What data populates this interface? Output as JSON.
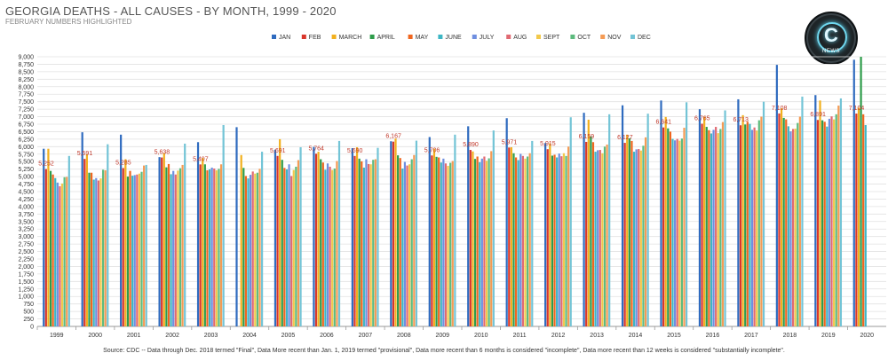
{
  "header": {
    "title": "GEORGIA DEATHS - ALL CAUSES - BY MONTH, 1999 - 2020",
    "subtitle": "FEBRUARY NUMBERS HIGHLIGHTED"
  },
  "logo": {
    "glyph": "C",
    "text": "NEWS"
  },
  "footer": {
    "source": "Source: CDC -- Data through Dec. 2018 termed \"Final\", Data More recent than Jan. 1, 2019 termed \"provisional\", Data more recent than 6 months is considered \"incomplete\", Data more recent than 12 weeks is considered \"substantially incomplete\"."
  },
  "chart_data": {
    "type": "bar",
    "title": "GEORGIA DEATHS - ALL CAUSES - BY MONTH, 1999 - 2020",
    "subtitle": "FEBRUARY NUMBERS HIGHLIGHTED",
    "categories": [
      "1999",
      "2000",
      "2001",
      "2002",
      "2003",
      "2004",
      "2005",
      "2006",
      "2007",
      "2008",
      "2009",
      "2010",
      "2011",
      "2012",
      "2013",
      "2014",
      "2015",
      "2016",
      "2017",
      "2018",
      "2019",
      "2020"
    ],
    "ylim": [
      0,
      9000
    ],
    "yticks": [
      0,
      250,
      500,
      750,
      1000,
      1250,
      1500,
      1750,
      2000,
      2250,
      2500,
      2750,
      3000,
      3250,
      3500,
      3750,
      4000,
      4250,
      4500,
      4750,
      5000,
      5250,
      5500,
      5750,
      6000,
      6250,
      6500,
      6750,
      7000,
      7250,
      7500,
      7750,
      8000,
      8250,
      8500,
      8750,
      9000
    ],
    "grid": true,
    "legend_position": "top",
    "series": [
      {
        "name": "JAN",
        "color": "#2f6bbf",
        "values": [
          5930,
          6480,
          6400,
          5650,
          6150,
          6650,
          5900,
          5990,
          5950,
          6180,
          6320,
          6680,
          6950,
          6120,
          7130,
          7380,
          7540,
          7250,
          7580,
          8730,
          7720,
          8900
        ]
      },
      {
        "name": "FEB",
        "color": "#d9362b",
        "values": [
          5252,
          5591,
          5285,
          5638,
          5407,
          null,
          5691,
          5764,
          5690,
          6167,
          5706,
          5890,
          5971,
          5915,
          6159,
          6127,
          6641,
          6765,
          6713,
          7108,
          6891,
          7104
        ]
      },
      {
        "name": "MARCH",
        "color": "#f2b01e",
        "values": [
          5930,
          5750,
          5580,
          5790,
          5620,
          5720,
          6250,
          5830,
          5980,
          6270,
          5930,
          5840,
          5980,
          6110,
          6900,
          6400,
          6990,
          7000,
          7050,
          7280,
          7540,
          7300
        ]
      },
      {
        "name": "APRIL",
        "color": "#2e9c4a",
        "values": [
          5190,
          5130,
          5000,
          5310,
          5410,
          5290,
          5560,
          5580,
          5600,
          5710,
          5660,
          5590,
          5780,
          5700,
          6340,
          6280,
          6610,
          6660,
          6740,
          6960,
          6880,
          9000
        ]
      },
      {
        "name": "MAY",
        "color": "#f0661f",
        "values": [
          5070,
          5130,
          5190,
          5420,
          5210,
          5020,
          5290,
          5470,
          5510,
          5620,
          5640,
          5670,
          5640,
          5730,
          6150,
          6190,
          6500,
          6550,
          6830,
          6910,
          6830,
          7080
        ]
      },
      {
        "name": "JUNE",
        "color": "#3db6c4",
        "values": [
          4950,
          4900,
          5030,
          5080,
          5240,
          4940,
          5240,
          5230,
          5300,
          5270,
          5470,
          5480,
          5550,
          5640,
          5830,
          5830,
          6260,
          6440,
          6760,
          6680,
          6670,
          6720
        ]
      },
      {
        "name": "JULY",
        "color": "#6f8fe0",
        "values": [
          4800,
          4950,
          5050,
          5190,
          5300,
          5060,
          5410,
          5440,
          5580,
          5490,
          5600,
          5600,
          5760,
          5770,
          5880,
          5910,
          6210,
          6560,
          6560,
          6510,
          6930,
          null
        ]
      },
      {
        "name": "AUG",
        "color": "#e06a73",
        "values": [
          4680,
          4870,
          5070,
          5070,
          5270,
          5170,
          5020,
          5330,
          5420,
          5370,
          5440,
          5670,
          5690,
          5680,
          5890,
          5920,
          6260,
          6660,
          6640,
          6590,
          7010,
          null
        ]
      },
      {
        "name": "SEPT",
        "color": "#f2c94c",
        "values": [
          4770,
          4940,
          5100,
          5200,
          5210,
          5100,
          5220,
          5220,
          5410,
          5410,
          5360,
          5530,
          5600,
          5780,
          5780,
          5870,
          6200,
          6450,
          6540,
          6600,
          6910,
          null
        ]
      },
      {
        "name": "OCT",
        "color": "#5dbb7e",
        "values": [
          4980,
          5230,
          5160,
          5280,
          5260,
          5130,
          5330,
          5270,
          5560,
          5580,
          5460,
          5610,
          5670,
          5690,
          6000,
          6030,
          6270,
          6590,
          6880,
          6790,
          7080,
          null
        ]
      },
      {
        "name": "NOV",
        "color": "#f59b54",
        "values": [
          4990,
          5210,
          5370,
          5390,
          5410,
          5260,
          5550,
          5520,
          5580,
          5720,
          5520,
          5850,
          5780,
          6000,
          6070,
          6310,
          6630,
          6820,
          7000,
          7000,
          7370,
          null
        ]
      },
      {
        "name": "DEC",
        "color": "#73c4d6",
        "values": [
          5690,
          6080,
          5390,
          6100,
          6720,
          5830,
          5980,
          6190,
          5960,
          6200,
          6400,
          6540,
          6190,
          6980,
          7080,
          7100,
          7480,
          7210,
          7500,
          7670,
          7610,
          null
        ]
      }
    ],
    "data_labels": {
      "series": "FEB",
      "values": [
        "5,252",
        "5,591",
        "5,285",
        "5,638",
        "5,407",
        "",
        "5,691",
        "5,764",
        "5,690",
        "6,167",
        "5,706",
        "5,890",
        "5,971",
        "5,915",
        "6,159",
        "6,127",
        "6,641",
        "6,765",
        "6,713",
        "7,108",
        "6,891",
        "7,104"
      ]
    }
  }
}
